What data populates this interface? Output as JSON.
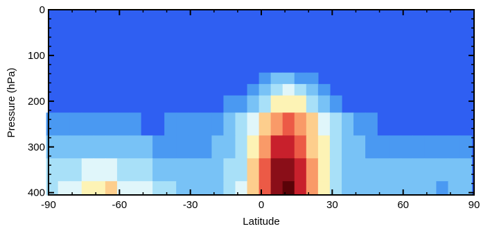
{
  "chart_data": {
    "type": "heatmap",
    "title": "",
    "xlabel": "Latitude",
    "ylabel": "Pressure (hPa)",
    "xlim": [
      -90,
      90
    ],
    "ylim": [
      405,
      0
    ],
    "y_inverted": true,
    "xticks": [
      -90,
      -60,
      -30,
      0,
      30,
      60,
      90
    ],
    "xtick_labels": [
      "-90",
      "-60",
      "-30",
      "0",
      "30",
      "60",
      "90"
    ],
    "yticks": [
      0,
      100,
      200,
      300,
      400
    ],
    "ytick_labels": [
      "0",
      "100",
      "200",
      "300",
      "400"
    ],
    "grid": false,
    "colormap": [
      "#3a6df0",
      "#4a99f2",
      "#78c2f6",
      "#a8e0f8",
      "#e0f6fa",
      "#fdf3b5",
      "#fdce8d",
      "#f99a68",
      "#ec5a46",
      "#c8202c",
      "#8a0e18",
      "#5a0308"
    ],
    "background_color": "#2f5ff2",
    "lat_columns": [
      -88.5,
      -83.5,
      -78.5,
      -73.5,
      -68.5,
      -63.5,
      -58.5,
      -53.5,
      -48.5,
      -43.5,
      -38.5,
      -33.5,
      -28.5,
      -23.5,
      -18.5,
      -13.5,
      -8.5,
      -3.5,
      1.5,
      6.5,
      11.5,
      16.5,
      21.5,
      26.5,
      31.5,
      36.5,
      41.5,
      46.5,
      51.5,
      56.5,
      61.5,
      66.5,
      71.5,
      76.5,
      81.5,
      86.5
    ],
    "pressure_levels": [
      125,
      150,
      175,
      200,
      250,
      300,
      350,
      400
    ],
    "levels_note_empty": "",
    "values": [
      [
        0,
        0,
        0,
        0,
        0,
        0,
        0,
        0,
        0,
        0,
        0,
        0,
        0,
        0,
        0,
        0,
        0,
        0,
        0,
        0,
        0,
        0,
        0,
        0,
        0,
        0,
        0,
        0,
        0,
        0,
        0,
        0,
        0,
        0,
        0,
        0
      ],
      [
        0,
        0,
        0,
        0,
        0,
        0,
        0,
        0,
        0,
        0,
        0,
        0,
        0,
        0,
        0,
        0,
        0,
        0,
        1,
        2,
        2,
        1,
        1,
        0,
        0,
        0,
        0,
        0,
        0,
        0,
        0,
        0,
        0,
        0,
        0,
        0
      ],
      [
        0,
        0,
        0,
        0,
        0,
        0,
        0,
        0,
        0,
        0,
        0,
        0,
        0,
        0,
        0,
        0,
        0,
        1,
        2,
        3,
        4,
        3,
        2,
        1,
        0,
        0,
        0,
        0,
        0,
        0,
        0,
        0,
        0,
        0,
        0,
        0
      ],
      [
        0,
        0,
        0,
        0,
        0,
        0,
        0,
        0,
        0,
        0,
        0,
        0,
        0,
        0,
        0,
        1,
        1,
        2,
        3,
        5,
        5,
        5,
        3,
        2,
        1,
        0,
        0,
        0,
        0,
        0,
        0,
        0,
        0,
        0,
        0,
        0
      ],
      [
        1,
        1,
        1,
        1,
        1,
        1,
        1,
        1,
        0,
        0,
        1,
        1,
        1,
        1,
        1,
        2,
        3,
        4,
        6,
        7,
        8,
        7,
        6,
        4,
        3,
        2,
        1,
        1,
        0,
        0,
        0,
        0,
        0,
        0,
        0,
        0
      ],
      [
        2,
        2,
        2,
        2,
        2,
        2,
        2,
        2,
        2,
        1,
        1,
        1,
        1,
        1,
        2,
        2,
        3,
        5,
        7,
        9,
        9,
        8,
        6,
        5,
        3,
        2,
        2,
        1,
        1,
        1,
        1,
        1,
        1,
        1,
        1,
        1
      ],
      [
        3,
        3,
        3,
        4,
        4,
        4,
        3,
        3,
        3,
        2,
        2,
        2,
        2,
        2,
        2,
        3,
        3,
        6,
        8,
        10,
        10,
        9,
        7,
        5,
        3,
        2,
        2,
        2,
        2,
        2,
        2,
        2,
        2,
        2,
        2,
        2
      ],
      [
        3,
        4,
        4,
        5,
        5,
        6,
        4,
        4,
        4,
        3,
        3,
        2,
        2,
        2,
        2,
        3,
        4,
        6,
        8,
        10,
        11,
        9,
        7,
        5,
        3,
        2,
        2,
        2,
        2,
        2,
        2,
        2,
        2,
        1,
        2,
        2
      ]
    ]
  }
}
